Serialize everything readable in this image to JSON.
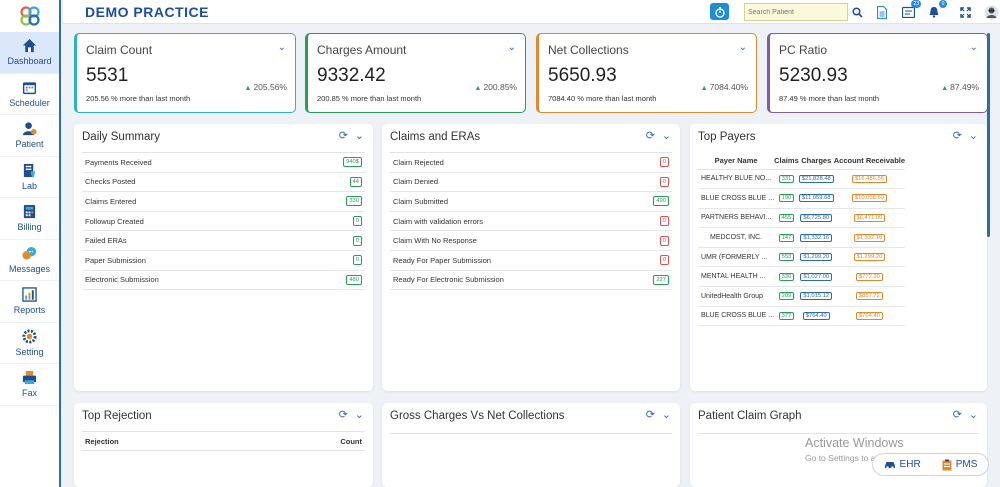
{
  "header": {
    "practice_name": "DEMO PRACTICE",
    "search_placeholder": "Search Patient",
    "messages_badge": "23",
    "notifications_badge": "0"
  },
  "sidebar": {
    "items": [
      {
        "label": "Dashboard",
        "icon": "home-icon"
      },
      {
        "label": "Scheduler",
        "icon": "calendar-icon"
      },
      {
        "label": "Patient",
        "icon": "patient-icon"
      },
      {
        "label": "Lab",
        "icon": "lab-icon"
      },
      {
        "label": "Billing",
        "icon": "billing-icon"
      },
      {
        "label": "Messages",
        "icon": "messages-icon"
      },
      {
        "label": "Reports",
        "icon": "reports-icon"
      },
      {
        "label": "Setting",
        "icon": "gear-icon"
      },
      {
        "label": "Fax",
        "icon": "fax-icon"
      }
    ]
  },
  "kpis": [
    {
      "title": "Claim Count",
      "value": "5531",
      "pct": "205.56%",
      "footer": "205.56 % more than last month",
      "color": "#2ab3c4"
    },
    {
      "title": "Charges Amount",
      "value": "9332.42",
      "pct": "200.85%",
      "footer": "200.85 % more than last month",
      "color": "#2a9d5a"
    },
    {
      "title": "Net Collections",
      "value": "5650.93",
      "pct": "7084.40%",
      "footer": "7084.40 % more than last month",
      "color": "#e08a2b"
    },
    {
      "title": "PC Ratio",
      "value": "5230.93",
      "pct": "87.49%",
      "footer": "87.49 % more than last month",
      "color": "#7b5ea7"
    }
  ],
  "daily_summary": {
    "title": "Daily Summary",
    "rows": [
      {
        "label": "Payments Received",
        "value": "940$"
      },
      {
        "label": "Checks Posted",
        "value": "44"
      },
      {
        "label": "Claims Entered",
        "value": "330"
      },
      {
        "label": "Followup Created",
        "value": "0"
      },
      {
        "label": "Failed ERAs",
        "value": "0"
      },
      {
        "label": "Paper Submission",
        "value": "0"
      },
      {
        "label": "Electronic Submission",
        "value": "480"
      }
    ]
  },
  "claims_eras": {
    "title": "Claims and ERAs",
    "rows": [
      {
        "label": "Claim Rejected",
        "value": "0",
        "status": "red"
      },
      {
        "label": "Claim Denied",
        "value": "0",
        "status": "red"
      },
      {
        "label": "Claim Submitted",
        "value": "490",
        "status": "green"
      },
      {
        "label": "Claim with validation errors",
        "value": "0",
        "status": "red"
      },
      {
        "label": "Claim With No Response",
        "value": "0",
        "status": "red"
      },
      {
        "label": "Ready For Paper Submission",
        "value": "0",
        "status": "red"
      },
      {
        "label": "Ready For Electronic Submission",
        "value": "227",
        "status": "green"
      }
    ]
  },
  "top_payers": {
    "title": "Top Payers",
    "columns": [
      "Payer Name",
      "Claims",
      "Charges",
      "Account Receivable"
    ],
    "rows": [
      {
        "name": "HEALTHY BLUE NO...",
        "claims": "331",
        "charges": "$21,828.48",
        "ar": "$16,486.56"
      },
      {
        "name": "BLUE CROSS BLUE ...",
        "claims": "190",
        "charges": "$11,059.68",
        "ar": "$10,058.60"
      },
      {
        "name": "PARTNERS BEHAVI...",
        "claims": "455",
        "charges": "$6,725.80",
        "ar": "$6,471.00"
      },
      {
        "name": "MEDCOST, INC.",
        "claims": "147",
        "charges": "$1,332.16",
        "ar": "$1,332.16"
      },
      {
        "name": "UMR (FORMERLY ...",
        "claims": "553",
        "charges": "$1,299.20",
        "ar": "$1,299.20"
      },
      {
        "name": "MENTAL HEALTH ...",
        "claims": "330",
        "charges": "$1,027.00",
        "ar": "$772.20"
      },
      {
        "name": "UnitedHealth Group",
        "claims": "209",
        "charges": "$1,015.12",
        "ar": "$887.72"
      },
      {
        "name": "BLUE CROSS BLUE ...",
        "claims": "377",
        "charges": "$764.40",
        "ar": "$764.40"
      }
    ]
  },
  "top_rejection": {
    "title": "Top Rejection",
    "col_rejection": "Rejection",
    "col_count": "Count"
  },
  "gross_vs_net": {
    "title": "Gross Charges Vs Net Collections"
  },
  "patient_claim_graph": {
    "title": "Patient Claim Graph"
  },
  "watermark": {
    "line1": "Activate Windows",
    "line2": "Go to Settings to activate Windows."
  },
  "switcher": {
    "ehr": "EHR",
    "pms": "PMS"
  }
}
